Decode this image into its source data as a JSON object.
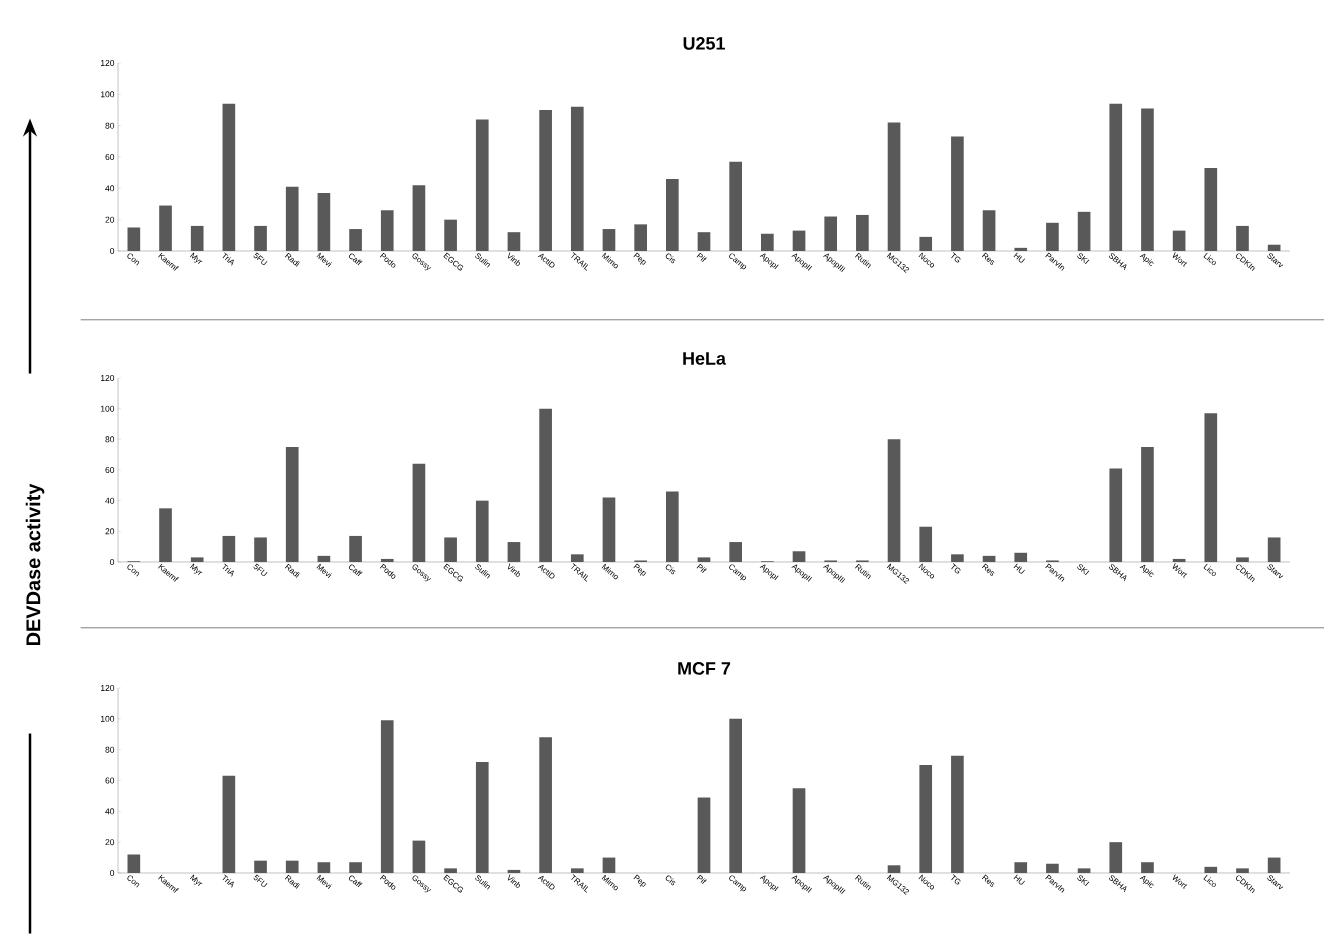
{
  "chart_data": [
    {
      "type": "bar",
      "title": "U251",
      "categories": [
        "Con",
        "Kaemf",
        "Myr",
        "TriA",
        "5FU",
        "Radi",
        "Mevi",
        "Caff",
        "Podo",
        "Gossy",
        "EGCG",
        "Sulin",
        "Vinb",
        "ActiD",
        "TRAIL",
        "Mimo",
        "Pep",
        "Cis",
        "Pif",
        "Camp",
        "ApopI",
        "ApopII",
        "ApopIII",
        "Rutin",
        "MG132",
        "Noco",
        "TG",
        "Res",
        "HU",
        "ParvIn",
        "SKI",
        "SBHA",
        "Apic",
        "Wort",
        "Lico",
        "CDKIn",
        "Starv"
      ],
      "values": [
        15,
        29,
        16,
        94,
        16,
        41,
        37,
        14,
        26,
        42,
        20,
        84,
        12,
        90,
        92,
        14,
        17,
        46,
        12,
        57,
        11,
        13,
        22,
        23,
        82,
        9,
        73,
        26,
        2,
        18,
        25,
        94,
        91,
        13,
        53,
        16,
        4
      ],
      "color": "#595959",
      "ylim": [
        0,
        120
      ],
      "yticks": [
        0,
        20,
        40,
        60,
        80,
        100,
        120
      ]
    },
    {
      "type": "bar",
      "title": "HeLa",
      "ylabel": "DEVDase activity",
      "categories": [
        "Con",
        "Kaemf",
        "Myr",
        "TriA",
        "5FU",
        "Radi",
        "Mevi",
        "Caff",
        "Podo",
        "Gossy",
        "EGCG",
        "Sulin",
        "Vinb",
        "ActiD",
        "TRAIL",
        "Mimo",
        "Pep",
        "Cis",
        "Pif",
        "Camp",
        "ApopI",
        "ApopII",
        "ApopIII",
        "Rutin",
        "MG132",
        "Noco",
        "TG",
        "Res",
        "HU",
        "ParvIn",
        "SKI",
        "SBHA",
        "Apic",
        "Wort",
        "Lico",
        "CDKIn",
        "Starv"
      ],
      "values": [
        0.5,
        35,
        3,
        17,
        16,
        75,
        4,
        17,
        2,
        64,
        16,
        40,
        13,
        100,
        5,
        42,
        1,
        46,
        3,
        13,
        0.5,
        7,
        1,
        1,
        80,
        23,
        5,
        4,
        6,
        1,
        0,
        61,
        75,
        2,
        97,
        3,
        16
      ],
      "color": "#595959",
      "ylim": [
        0,
        120
      ],
      "yticks": [
        0,
        20,
        40,
        60,
        80,
        100,
        120
      ]
    },
    {
      "type": "bar",
      "title": "MCF 7",
      "categories": [
        "Con",
        "Kaemf",
        "Myr",
        "TriA",
        "5FU",
        "Radi",
        "Mevi",
        "Caff",
        "Podo",
        "Gossy",
        "EGCG",
        "Sulin",
        "Vinb",
        "ActiD",
        "TRAIL",
        "Mimo",
        "Pep",
        "Cis",
        "Pif",
        "Camp",
        "ApopI",
        "ApopII",
        "ApopIII",
        "Rutin",
        "MG132",
        "Noco",
        "TG",
        "Res",
        "HU",
        "ParvIn",
        "SKI",
        "SBHA",
        "Apic",
        "Wort",
        "Lico",
        "CDKIn",
        "Starv"
      ],
      "values": [
        12,
        0,
        0,
        63,
        8,
        8,
        7,
        7,
        99,
        21,
        3,
        72,
        2,
        88,
        3,
        10,
        0,
        0,
        49,
        100,
        0,
        55,
        0,
        0,
        5,
        70,
        76,
        0,
        7,
        6,
        3,
        20,
        7,
        0,
        4,
        3,
        10
      ],
      "color": "#595959",
      "ylim": [
        0,
        120
      ],
      "yticks": [
        0,
        20,
        40,
        60,
        80,
        100,
        120
      ]
    }
  ]
}
